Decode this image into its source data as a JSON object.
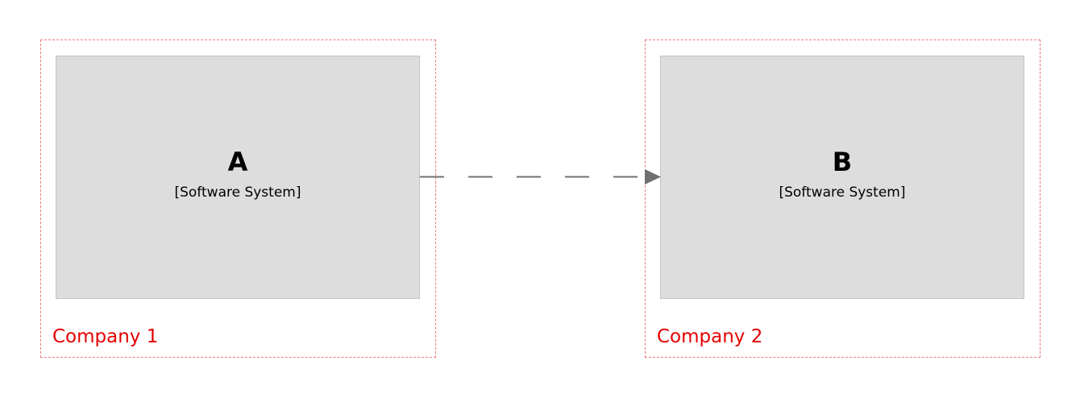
{
  "boundaries": [
    {
      "label": "Company 1",
      "border_color": "#e87a7a",
      "label_color": "#e60000"
    },
    {
      "label": "Company 2",
      "border_color": "#e87a7a",
      "label_color": "#e60000"
    }
  ],
  "systems": [
    {
      "name": "A",
      "type": "[Software System]",
      "fill": "#dddddd"
    },
    {
      "name": "B",
      "type": "[Software System]",
      "fill": "#dddddd"
    }
  ],
  "relationship": {
    "from": "A",
    "to": "B",
    "line_color": "#707070"
  }
}
